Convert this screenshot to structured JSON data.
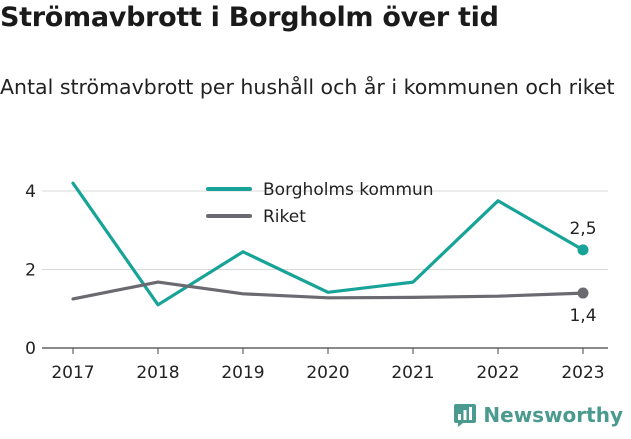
{
  "title": "Strömavbrott i Borgholm över tid",
  "subtitle": "Antal strömavbrott per hushåll och år i kommunen och riket",
  "brand": "Newsworthy",
  "chart_data": {
    "type": "line",
    "x": [
      "2017",
      "2018",
      "2019",
      "2020",
      "2021",
      "2022",
      "2023"
    ],
    "ylim": [
      0,
      4.3
    ],
    "yticks": [
      0,
      2,
      4
    ],
    "grid": true,
    "legend_position": "top-center",
    "series": [
      {
        "name": "Borgholms kommun",
        "color": "#17a398",
        "values": [
          4.2,
          1.1,
          2.45,
          1.42,
          1.68,
          3.75,
          2.5
        ],
        "end_label": "2,5"
      },
      {
        "name": "Riket",
        "color": "#6b6a70",
        "values": [
          1.25,
          1.68,
          1.38,
          1.28,
          1.29,
          1.32,
          1.4
        ],
        "end_label": "1,4"
      }
    ]
  }
}
